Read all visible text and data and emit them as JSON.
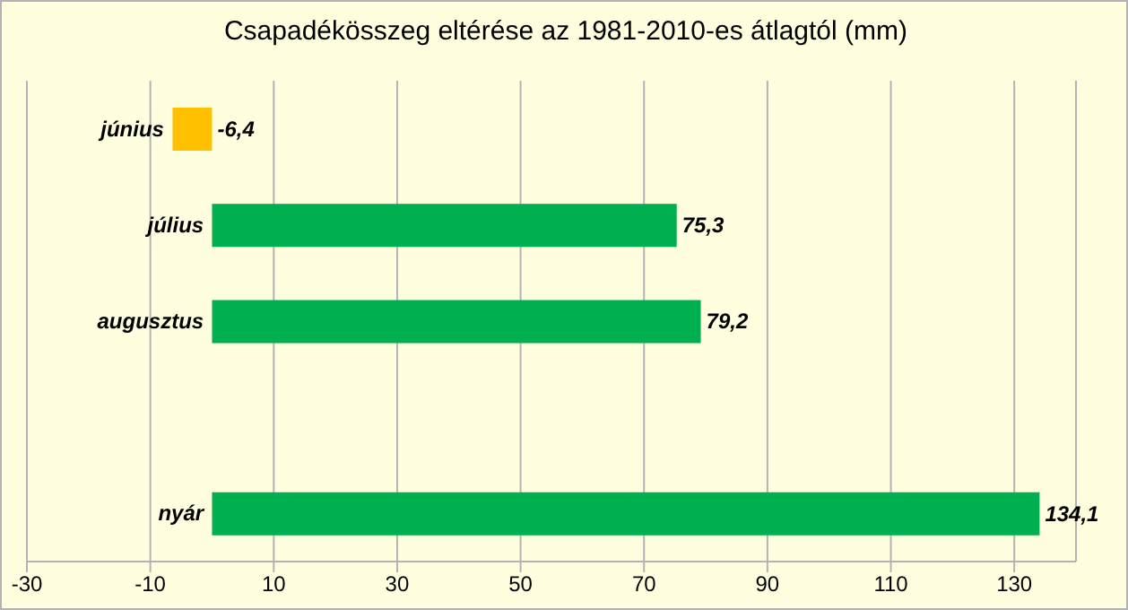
{
  "chart_data": {
    "type": "bar",
    "orientation": "horizontal",
    "title": "Csapadékösszeg eltérése az 1981-2010-es átlagtól (mm)",
    "categories": [
      "június",
      "július",
      "augusztus",
      null,
      "nyár"
    ],
    "values": [
      -6.4,
      75.3,
      79.2,
      null,
      134.1
    ],
    "colors": [
      "#ffc000",
      "#00b050",
      "#00b050",
      null,
      "#00b050"
    ],
    "value_labels": [
      "-6,4",
      "75,3",
      "79,2",
      null,
      "134,1"
    ],
    "xlim": [
      -30,
      140
    ],
    "xticks": [
      -30,
      -10,
      10,
      30,
      50,
      70,
      90,
      110,
      130
    ],
    "grid": "x"
  }
}
